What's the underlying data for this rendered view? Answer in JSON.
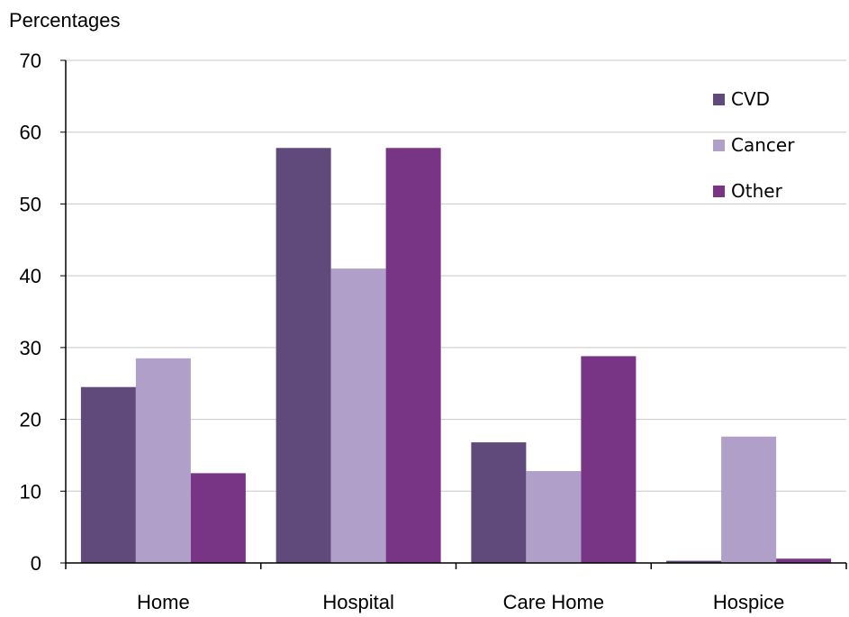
{
  "chart_data": {
    "type": "bar",
    "ylabel": "Percentages",
    "ylim": [
      0,
      70
    ],
    "yticks": [
      0,
      10,
      20,
      30,
      40,
      50,
      60,
      70
    ],
    "grid": true,
    "legend_position": "top-right",
    "categories": [
      "Home",
      "Hospital",
      "Care Home",
      "Hospice"
    ],
    "series": [
      {
        "name": "CVD",
        "color": "#5f4a7b",
        "values": [
          24.5,
          57.8,
          16.8,
          0.3
        ]
      },
      {
        "name": "Cancer",
        "color": "#b09fc8",
        "values": [
          28.5,
          41.0,
          12.8,
          17.6
        ]
      },
      {
        "name": "Other",
        "color": "#783586",
        "values": [
          12.5,
          57.8,
          28.8,
          0.6
        ]
      }
    ]
  }
}
